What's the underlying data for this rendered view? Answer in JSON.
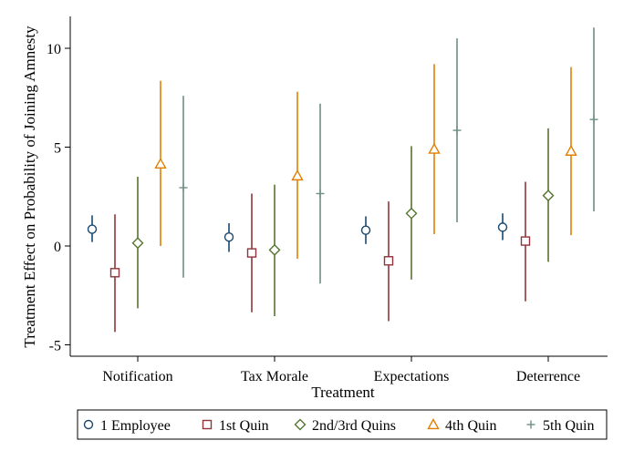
{
  "chart_data": {
    "type": "scatter",
    "subtype": "point-estimates-with-confidence-intervals",
    "xlabel": "Treatment",
    "ylabel": "Treatment Effect on Probability of Joining Amnesty",
    "categories": [
      "Notification",
      "Tax Morale",
      "Expectations",
      "Deterrence"
    ],
    "yticks": [
      -5,
      0,
      5,
      10
    ],
    "ytick_labels": [
      "-5",
      "0",
      "5",
      "10"
    ],
    "ylim": [
      -5.5,
      11.6
    ],
    "grid": false,
    "legend_position": "bottom",
    "series": [
      {
        "name": "1 Employee",
        "marker": "circle",
        "color": "#1a476f",
        "estimates": [
          0.85,
          0.45,
          0.8,
          0.95
        ],
        "ci_low": [
          0.2,
          -0.3,
          0.1,
          0.3
        ],
        "ci_high": [
          1.55,
          1.15,
          1.5,
          1.65
        ]
      },
      {
        "name": "1st Quin",
        "marker": "square",
        "color": "#90353b",
        "estimates": [
          -1.35,
          -0.35,
          -0.75,
          0.25
        ],
        "ci_low": [
          -4.35,
          -3.35,
          -3.8,
          -2.8
        ],
        "ci_high": [
          1.6,
          2.65,
          2.25,
          3.25
        ]
      },
      {
        "name": "2nd/3rd Quins",
        "marker": "diamond",
        "color": "#55752f",
        "estimates": [
          0.15,
          -0.2,
          1.65,
          2.55
        ],
        "ci_low": [
          -3.15,
          -3.55,
          -1.7,
          -0.8
        ],
        "ci_high": [
          3.5,
          3.1,
          5.05,
          5.95
        ]
      },
      {
        "name": "4th Quin",
        "marker": "triangle",
        "color": "#e37e00",
        "estimates": [
          4.15,
          3.55,
          4.9,
          4.8
        ],
        "ci_low": [
          0.0,
          -0.65,
          0.6,
          0.55
        ],
        "ci_high": [
          8.35,
          7.8,
          9.2,
          9.05
        ]
      },
      {
        "name": "5th Quin",
        "marker": "plus",
        "color": "#6e8e84",
        "estimates": [
          2.95,
          2.65,
          5.85,
          6.4
        ],
        "ci_low": [
          -1.6,
          -1.9,
          1.2,
          1.75
        ],
        "ci_high": [
          7.6,
          7.2,
          10.5,
          11.05
        ]
      }
    ]
  }
}
